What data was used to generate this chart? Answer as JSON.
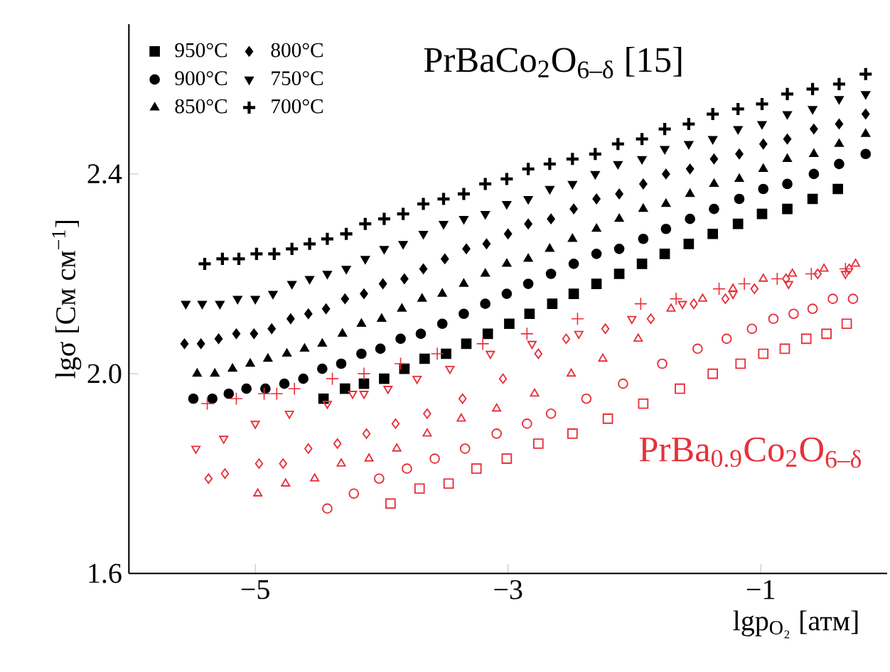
{
  "chart_data": {
    "type": "scatter",
    "xlabel": "lgp$_{O₂}$ [атм]",
    "ylabel": "lgσ [См см$^{−1}$]",
    "annotations": [
      "PrBaCo$_{2}$O$_{6–δ}$ [15]",
      "PrBa$_{0.9}$Co$_{2}$O$_{6–δ}$"
    ],
    "xlim": [
      -6,
      0
    ],
    "ylim": [
      1.6,
      2.7
    ],
    "xticks": [
      {
        "value": -5,
        "label": "−5"
      },
      {
        "value": -3,
        "label": "−3"
      },
      {
        "value": -1,
        "label": "−1"
      }
    ],
    "yticks": [
      1.6,
      {
        "value": 2.0,
        "label": "2.0"
      },
      2.4
    ],
    "legend": "top left",
    "grid": false,
    "series": [
      {
        "name": "950°C",
        "color": "#000000",
        "marker": "square",
        "x": [
          -4.46,
          -4.29,
          -4.14,
          -3.98,
          -3.82,
          -3.66,
          -3.49,
          -3.33,
          -3.16,
          -2.99,
          -2.83,
          -2.65,
          -2.48,
          -2.3,
          -2.12,
          -1.94,
          -1.76,
          -1.57,
          -1.38,
          -1.18,
          -0.99,
          -0.79,
          -0.59,
          -0.39
        ],
        "values": [
          1.95,
          1.97,
          1.98,
          1.99,
          2.01,
          2.03,
          2.04,
          2.06,
          2.08,
          2.1,
          2.12,
          2.14,
          2.16,
          2.18,
          2.2,
          2.22,
          2.24,
          2.26,
          2.28,
          2.3,
          2.32,
          2.33,
          2.35,
          2.37
        ]
      },
      {
        "name": "900°C",
        "color": "#000000",
        "marker": "circle",
        "x": [
          -5.49,
          -5.34,
          -5.21,
          -5.07,
          -4.92,
          -4.77,
          -4.62,
          -4.47,
          -4.32,
          -4.16,
          -4.01,
          -3.85,
          -3.69,
          -3.52,
          -3.35,
          -3.18,
          -3.01,
          -2.84,
          -2.66,
          -2.48,
          -2.3,
          -2.12,
          -1.93,
          -1.75,
          -1.56,
          -1.37,
          -1.17,
          -0.98,
          -0.79,
          -0.58,
          -0.38,
          -0.17
        ],
        "values": [
          1.95,
          1.95,
          1.96,
          1.97,
          1.97,
          1.98,
          1.99,
          2.01,
          2.02,
          2.04,
          2.05,
          2.07,
          2.08,
          2.1,
          2.12,
          2.14,
          2.16,
          2.18,
          2.2,
          2.22,
          2.24,
          2.25,
          2.27,
          2.29,
          2.31,
          2.33,
          2.35,
          2.37,
          2.38,
          2.4,
          2.42,
          2.44
        ]
      },
      {
        "name": "850°C",
        "color": "#000000",
        "marker": "triangle",
        "x": [
          -5.46,
          -5.32,
          -5.18,
          -5.04,
          -4.9,
          -4.75,
          -4.61,
          -4.47,
          -4.31,
          -4.16,
          -4.0,
          -3.84,
          -3.68,
          -3.52,
          -3.35,
          -3.18,
          -3.01,
          -2.84,
          -2.67,
          -2.49,
          -2.3,
          -2.12,
          -1.93,
          -1.75,
          -1.56,
          -1.37,
          -1.17,
          -0.98,
          -0.79,
          -0.58,
          -0.38,
          -0.17
        ],
        "values": [
          2.0,
          2.0,
          2.01,
          2.02,
          2.03,
          2.04,
          2.05,
          2.06,
          2.08,
          2.1,
          2.11,
          2.13,
          2.15,
          2.16,
          2.18,
          2.2,
          2.22,
          2.23,
          2.25,
          2.27,
          2.29,
          2.31,
          2.33,
          2.34,
          2.36,
          2.38,
          2.39,
          2.41,
          2.43,
          2.44,
          2.46,
          2.48
        ]
      },
      {
        "name": "800°C",
        "color": "#000000",
        "marker": "diamond",
        "x": [
          -5.56,
          -5.43,
          -5.29,
          -5.15,
          -5.01,
          -4.87,
          -4.72,
          -4.58,
          -4.44,
          -4.29,
          -4.14,
          -3.99,
          -3.82,
          -3.67,
          -3.5,
          -3.33,
          -3.17,
          -3.0,
          -2.84,
          -2.66,
          -2.48,
          -2.3,
          -2.12,
          -1.93,
          -1.75,
          -1.56,
          -1.37,
          -1.17,
          -0.98,
          -0.79,
          -0.58,
          -0.38,
          -0.17
        ],
        "values": [
          2.06,
          2.06,
          2.07,
          2.08,
          2.08,
          2.09,
          2.11,
          2.12,
          2.13,
          2.15,
          2.16,
          2.18,
          2.19,
          2.21,
          2.23,
          2.25,
          2.26,
          2.28,
          2.3,
          2.31,
          2.33,
          2.35,
          2.36,
          2.38,
          2.4,
          2.41,
          2.43,
          2.44,
          2.46,
          2.47,
          2.49,
          2.5,
          2.52
        ]
      },
      {
        "name": "750°C",
        "color": "#000000",
        "marker": "triangle-down",
        "x": [
          -5.55,
          -5.42,
          -5.28,
          -5.14,
          -5.0,
          -4.86,
          -4.71,
          -4.57,
          -4.43,
          -4.28,
          -4.13,
          -3.98,
          -3.83,
          -3.67,
          -3.51,
          -3.35,
          -3.18,
          -3.01,
          -2.84,
          -2.67,
          -2.49,
          -2.31,
          -2.13,
          -1.94,
          -1.76,
          -1.57,
          -1.38,
          -1.18,
          -0.99,
          -0.79,
          -0.59,
          -0.38,
          -0.17
        ],
        "values": [
          2.14,
          2.14,
          2.14,
          2.15,
          2.15,
          2.16,
          2.18,
          2.19,
          2.2,
          2.21,
          2.23,
          2.25,
          2.26,
          2.28,
          2.3,
          2.31,
          2.32,
          2.34,
          2.35,
          2.37,
          2.38,
          2.4,
          2.42,
          2.43,
          2.45,
          2.46,
          2.47,
          2.49,
          2.5,
          2.52,
          2.53,
          2.55,
          2.56
        ]
      },
      {
        "name": "700°C",
        "color": "#000000",
        "marker": "cross",
        "x": [
          -5.4,
          -5.26,
          -5.13,
          -4.99,
          -4.85,
          -4.71,
          -4.57,
          -4.43,
          -4.28,
          -4.13,
          -3.98,
          -3.83,
          -3.67,
          -3.51,
          -3.35,
          -3.18,
          -3.01,
          -2.84,
          -2.67,
          -2.49,
          -2.31,
          -2.13,
          -1.94,
          -1.76,
          -1.57,
          -1.38,
          -1.18,
          -0.99,
          -0.79,
          -0.59,
          -0.38,
          -0.17
        ],
        "values": [
          2.22,
          2.23,
          2.23,
          2.24,
          2.24,
          2.25,
          2.26,
          2.27,
          2.28,
          2.3,
          2.31,
          2.32,
          2.34,
          2.35,
          2.36,
          2.38,
          2.39,
          2.41,
          2.42,
          2.43,
          2.44,
          2.46,
          2.47,
          2.49,
          2.5,
          2.52,
          2.53,
          2.54,
          2.56,
          2.57,
          2.58,
          2.6
        ]
      },
      {
        "color": "#e8303a",
        "marker": "square-open",
        "x": [
          -3.93,
          -3.7,
          -3.47,
          -3.25,
          -3.01,
          -2.76,
          -2.49,
          -2.21,
          -1.93,
          -1.64,
          -1.38,
          -1.16,
          -0.98,
          -0.81,
          -0.64,
          -0.48,
          -0.32
        ],
        "values": [
          1.74,
          1.77,
          1.78,
          1.81,
          1.83,
          1.86,
          1.88,
          1.91,
          1.94,
          1.97,
          2.0,
          2.02,
          2.04,
          2.05,
          2.07,
          2.08,
          2.1
        ]
      },
      {
        "color": "#e8303a",
        "marker": "circle-open",
        "x": [
          -4.43,
          -4.22,
          -4.02,
          -3.8,
          -3.58,
          -3.34,
          -3.09,
          -2.85,
          -2.66,
          -2.38,
          -2.09,
          -1.78,
          -1.5,
          -1.27,
          -1.07,
          -0.9,
          -0.74,
          -0.59,
          -0.43,
          -0.27
        ],
        "values": [
          1.73,
          1.76,
          1.79,
          1.81,
          1.83,
          1.85,
          1.88,
          1.9,
          1.92,
          1.95,
          1.98,
          2.02,
          2.05,
          2.07,
          2.09,
          2.11,
          2.12,
          2.13,
          2.15,
          2.15
        ]
      },
      {
        "color": "#e8303a",
        "marker": "triangle-open",
        "x": [
          -4.98,
          -4.76,
          -4.53,
          -4.32,
          -4.1,
          -3.88,
          -3.64,
          -3.37,
          -3.09,
          -2.79,
          -2.5,
          -2.25,
          -1.97,
          -1.71,
          -1.46,
          -1.22,
          -0.98,
          -0.75,
          -0.5,
          -0.25
        ],
        "values": [
          1.76,
          1.78,
          1.79,
          1.82,
          1.83,
          1.85,
          1.88,
          1.91,
          1.93,
          1.96,
          2.0,
          2.03,
          2.07,
          2.13,
          2.15,
          2.17,
          2.19,
          2.2,
          2.21,
          2.22
        ]
      },
      {
        "color": "#e8303a",
        "marker": "diamond-open",
        "x": [
          -5.37,
          -5.24,
          -4.97,
          -4.78,
          -4.58,
          -4.35,
          -4.12,
          -3.89,
          -3.64,
          -3.36,
          -3.04,
          -2.76,
          -2.54,
          -2.23,
          -1.87,
          -1.53,
          -1.28,
          -1.05,
          -0.8,
          -0.55,
          -0.3
        ],
        "values": [
          1.79,
          1.8,
          1.82,
          1.82,
          1.85,
          1.86,
          1.88,
          1.9,
          1.92,
          1.95,
          1.99,
          2.04,
          2.07,
          2.09,
          2.11,
          2.14,
          2.15,
          2.17,
          2.19,
          2.2,
          2.21
        ]
      },
      {
        "color": "#e8303a",
        "marker": "triangle-down-open",
        "x": [
          -5.47,
          -5.25,
          -5.0,
          -4.73,
          -4.43,
          -4.23,
          -4.14,
          -3.95,
          -3.72,
          -3.46,
          -3.14,
          -2.81,
          -2.44,
          -2.02,
          -1.62,
          -1.22,
          -0.78,
          -0.33
        ],
        "values": [
          1.85,
          1.87,
          1.9,
          1.92,
          1.94,
          1.96,
          1.96,
          1.97,
          1.99,
          2.01,
          2.04,
          2.06,
          2.08,
          2.11,
          2.14,
          2.16,
          2.18,
          2.2
        ]
      },
      {
        "color": "#e8303a",
        "marker": "cross-open",
        "x": [
          -5.38,
          -5.15,
          -4.93,
          -4.83,
          -4.69,
          -4.39,
          -4.14,
          -3.85,
          -3.56,
          -3.2,
          -2.85,
          -2.45,
          -1.95,
          -1.67,
          -1.33,
          -1.13,
          -0.87,
          -0.6,
          -0.33
        ],
        "values": [
          1.94,
          1.95,
          1.96,
          1.96,
          1.97,
          1.99,
          2.0,
          2.02,
          2.04,
          2.06,
          2.08,
          2.11,
          2.14,
          2.15,
          2.17,
          2.18,
          2.19,
          2.2,
          2.21
        ]
      }
    ]
  }
}
